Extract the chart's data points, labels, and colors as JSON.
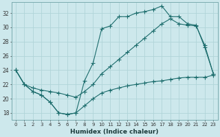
{
  "xlabel": "Humidex (Indice chaleur)",
  "bg_color": "#cde8ec",
  "grid_color": "#b0d4d8",
  "line_color": "#1a6b6b",
  "xlim": [
    -0.5,
    23.5
  ],
  "ylim": [
    17.0,
    33.5
  ],
  "yticks": [
    18,
    20,
    22,
    24,
    26,
    28,
    30,
    32
  ],
  "xticks": [
    0,
    1,
    2,
    3,
    4,
    5,
    6,
    7,
    8,
    9,
    10,
    11,
    12,
    13,
    14,
    15,
    16,
    17,
    18,
    19,
    20,
    21,
    22,
    23
  ],
  "line1_x": [
    0,
    1,
    2,
    3,
    4,
    5,
    6,
    7,
    8,
    9,
    10,
    11,
    12,
    13,
    14,
    15,
    16,
    17,
    18,
    19,
    20,
    21,
    22,
    23
  ],
  "line1_y": [
    24,
    22,
    21,
    20.5,
    19.5,
    18,
    17.8,
    18,
    22.5,
    25,
    29.8,
    30.2,
    31.5,
    31.5,
    32,
    32.2,
    32.5,
    33,
    31.5,
    31.5,
    30.5,
    30.3,
    27.2,
    23.5
  ],
  "line2_x": [
    0,
    1,
    2,
    3,
    4,
    5,
    6,
    7,
    8,
    9,
    10,
    11,
    12,
    13,
    14,
    15,
    16,
    17,
    18,
    19,
    20,
    21,
    22,
    23
  ],
  "line2_y": [
    24,
    22,
    21.5,
    21.2,
    21.0,
    20.8,
    20.5,
    20.2,
    21.0,
    22.0,
    23.5,
    24.5,
    25.5,
    26.5,
    27.5,
    28.5,
    29.5,
    30.5,
    31.2,
    30.5,
    30.3,
    30.2,
    27.5,
    23.5
  ],
  "line3_x": [
    0,
    1,
    2,
    3,
    4,
    5,
    6,
    7,
    8,
    9,
    10,
    11,
    12,
    13,
    14,
    15,
    16,
    17,
    18,
    19,
    20,
    21,
    22,
    23
  ],
  "line3_y": [
    24,
    22,
    21,
    20.5,
    19.5,
    18,
    17.8,
    18,
    19.0,
    20.0,
    20.8,
    21.2,
    21.5,
    21.8,
    22.0,
    22.2,
    22.4,
    22.5,
    22.7,
    22.9,
    23.0,
    23.0,
    23.0,
    23.3
  ]
}
